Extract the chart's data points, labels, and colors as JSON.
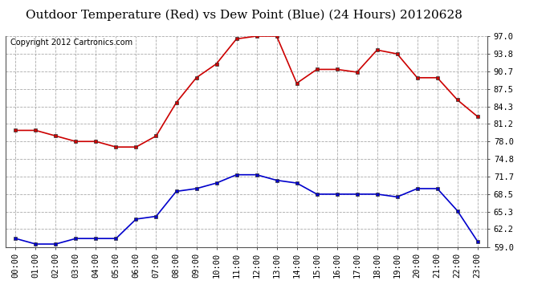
{
  "title": "Outdoor Temperature (Red) vs Dew Point (Blue) (24 Hours) 20120628",
  "copyright": "Copyright 2012 Cartronics.com",
  "hours": [
    "00:00",
    "01:00",
    "02:00",
    "03:00",
    "04:00",
    "05:00",
    "06:00",
    "07:00",
    "08:00",
    "09:00",
    "10:00",
    "11:00",
    "12:00",
    "13:00",
    "14:00",
    "15:00",
    "16:00",
    "17:00",
    "18:00",
    "19:00",
    "20:00",
    "21:00",
    "22:00",
    "23:00"
  ],
  "temp_red": [
    80.0,
    80.0,
    79.0,
    78.0,
    78.0,
    77.0,
    77.0,
    79.0,
    85.0,
    89.5,
    92.0,
    96.5,
    97.0,
    97.0,
    88.5,
    91.0,
    91.0,
    90.5,
    94.5,
    93.8,
    89.5,
    89.5,
    85.5,
    82.5
  ],
  "dew_blue": [
    60.5,
    59.5,
    59.5,
    60.5,
    60.5,
    60.5,
    64.0,
    64.5,
    69.0,
    69.5,
    70.5,
    72.0,
    72.0,
    71.0,
    70.5,
    68.5,
    68.5,
    68.5,
    68.5,
    68.0,
    69.5,
    69.5,
    65.5,
    60.0
  ],
  "ylim": [
    59.0,
    97.0
  ],
  "yticks": [
    59.0,
    62.2,
    65.3,
    68.5,
    71.7,
    74.8,
    78.0,
    81.2,
    84.3,
    87.5,
    90.7,
    93.8,
    97.0
  ],
  "bg_color": "#ffffff",
  "plot_bg": "#ffffff",
  "grid_color": "#aaaaaa",
  "red_color": "#cc0000",
  "blue_color": "#0000cc",
  "title_fontsize": 11,
  "copyright_fontsize": 7,
  "tick_fontsize": 7.5
}
